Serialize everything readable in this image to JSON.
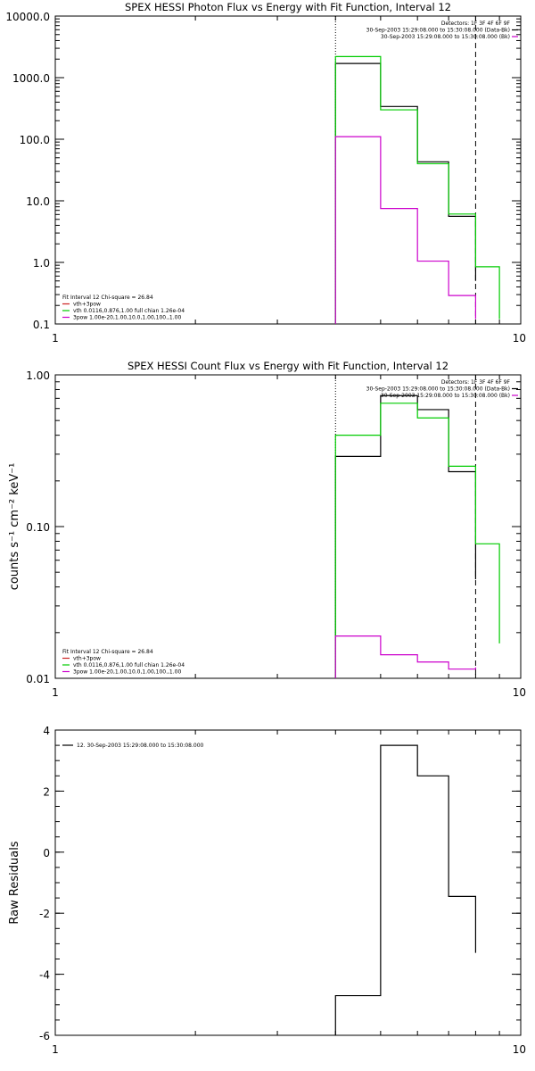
{
  "chart_data": [
    {
      "type": "line",
      "step": true,
      "title": "SPEX HESSI Photon Flux vs Energy with Fit Function, Interval 12",
      "xscale": "log",
      "yscale": "log",
      "xlim": [
        1,
        10
      ],
      "ylim": [
        0.1,
        10000
      ],
      "x_ticks": [
        "1",
        "10"
      ],
      "y_ticks": [
        {
          "v": 10000,
          "label": "10000.0"
        },
        {
          "v": 1000,
          "label": "1000.0"
        },
        {
          "v": 100,
          "label": "100.0"
        },
        {
          "v": 10,
          "label": "10.0"
        },
        {
          "v": 1,
          "label": "1.0"
        },
        {
          "v": 0.1,
          "label": "0.1"
        }
      ],
      "vlines": [
        {
          "x": 4.0,
          "style": "dotted"
        },
        {
          "x": 8.0,
          "style": "dashed"
        }
      ],
      "info_lines": [
        "Detectors: 1F 3F 4F 6F 9F",
        "30-Sep-2003 15:29:08.000 to 15:30:08.000 (Data-Bk)",
        "30-Sep-2003 15:29:08.000 to 15:30:08.000 (Bk)"
      ],
      "info_colors": [
        "",
        "#000000",
        "#cc00cc"
      ],
      "fit_lines": [
        "Fit Interval 12   Chi-square = 26.84",
        "vth+3pow",
        "vth 0.0116,0.876,1.00  full chian 1.26e-04",
        "3pow 1.00e-20,1.00,10.0,1.00,100.,1.00"
      ],
      "fit_colors": [
        "",
        "#cc2222",
        "#00cc00",
        "#cc00cc"
      ],
      "series": [
        {
          "name": "30-Sep-2003 15:29:08.000 to 15:30:08.000 (Data-Bk)",
          "color": "#000000",
          "edges": [
            4.0,
            5.0,
            6.0,
            7.0,
            8.0
          ],
          "values": [
            1700,
            340,
            43,
            5.6,
            0.5
          ]
        },
        {
          "name": "vth 0.0116,0.876,1.00  full chian 1.26e-04",
          "color": "#00cc00",
          "edges": [
            4.0,
            5.0,
            6.0,
            7.0,
            8.0,
            9.0
          ],
          "values": [
            2200,
            300,
            40,
            6.1,
            0.85,
            0.12
          ]
        },
        {
          "name": "30-Sep-2003 15:29:08.000 to 15:30:08.000 (Bk)",
          "color": "#cc00cc",
          "edges": [
            4.0,
            5.0,
            6.0,
            7.0,
            8.0
          ],
          "values": [
            110,
            7.5,
            1.05,
            0.29,
            0.12
          ]
        }
      ]
    },
    {
      "type": "line",
      "step": true,
      "title": "SPEX HESSI Count Flux vs Energy with Fit Function, Interval 12",
      "ylabel": "counts s⁻¹ cm⁻² keV⁻¹",
      "xscale": "log",
      "yscale": "log",
      "xlim": [
        1,
        10
      ],
      "ylim": [
        0.01,
        1.0
      ],
      "x_ticks": [
        "1",
        "10"
      ],
      "y_ticks": [
        {
          "v": 1.0,
          "label": "1.00"
        },
        {
          "v": 0.1,
          "label": "0.10"
        },
        {
          "v": 0.01,
          "label": "0.01"
        }
      ],
      "vlines": [
        {
          "x": 4.0,
          "style": "dotted"
        },
        {
          "x": 8.0,
          "style": "dashed"
        }
      ],
      "info_lines": [
        "Detectors: 1F 3F 4F 6F 9F",
        "30-Sep-2003 15:29:08.000 to 15:30:08.000 (Data-Bk)",
        "30-Sep-2003 15:29:08.000 to 15:30:08.000 (Bk)"
      ],
      "info_colors": [
        "",
        "#000000",
        "#cc00cc"
      ],
      "fit_lines": [
        "Fit Interval 12   Chi-square = 26.84",
        "vth+3pow",
        "vth 0.0116,0.876,1.00  full chian 1.26e-04",
        "3pow 1.00e-20,1.00,10.0,1.00,100.,1.00"
      ],
      "fit_colors": [
        "",
        "#cc2222",
        "#00cc00",
        "#cc00cc"
      ],
      "series": [
        {
          "name": "30-Sep-2003 15:29:08.000 to 15:30:08.000 (Data-Bk)",
          "color": "#000000",
          "edges": [
            4.0,
            5.0,
            6.0,
            7.0,
            8.0
          ],
          "values": [
            0.29,
            0.73,
            0.59,
            0.23,
            0.045
          ]
        },
        {
          "name": "vth 0.0116,0.876,1.00  full chian 1.26e-04",
          "color": "#00cc00",
          "edges": [
            4.0,
            5.0,
            6.0,
            7.0,
            8.0,
            9.0
          ],
          "values": [
            0.4,
            0.65,
            0.52,
            0.25,
            0.077,
            0.017
          ]
        },
        {
          "name": "30-Sep-2003 15:29:08.000 to 15:30:08.000 (Bk)",
          "color": "#cc00cc",
          "edges": [
            4.0,
            5.0,
            6.0,
            7.0,
            8.0
          ],
          "values": [
            0.019,
            0.0143,
            0.0128,
            0.0115,
            0.0118
          ]
        }
      ]
    },
    {
      "type": "line",
      "step": true,
      "title": "",
      "ylabel": "Raw Residuals",
      "xscale": "log",
      "yscale": "linear",
      "xlim": [
        1,
        10
      ],
      "ylim": [
        -6,
        4
      ],
      "x_ticks": [
        "1",
        "10"
      ],
      "y_ticks": [
        {
          "v": 4,
          "label": "4"
        },
        {
          "v": 2,
          "label": "2"
        },
        {
          "v": 0,
          "label": "0"
        },
        {
          "v": -2,
          "label": "-2"
        },
        {
          "v": -4,
          "label": "-4"
        },
        {
          "v": -6,
          "label": "-6"
        }
      ],
      "legend_lines": [
        "12. 30-Sep-2003 15:29:08.000 to 15:30:08.000"
      ],
      "series": [
        {
          "name": "12. 30-Sep-2003 15:29:08.000 to 15:30:08.000",
          "color": "#000000",
          "edges": [
            4.0,
            5.0,
            6.0,
            7.0,
            8.0
          ],
          "values": [
            -4.7,
            3.5,
            2.5,
            -1.45,
            -3.3
          ],
          "drop_to_bottom": true
        }
      ]
    }
  ]
}
